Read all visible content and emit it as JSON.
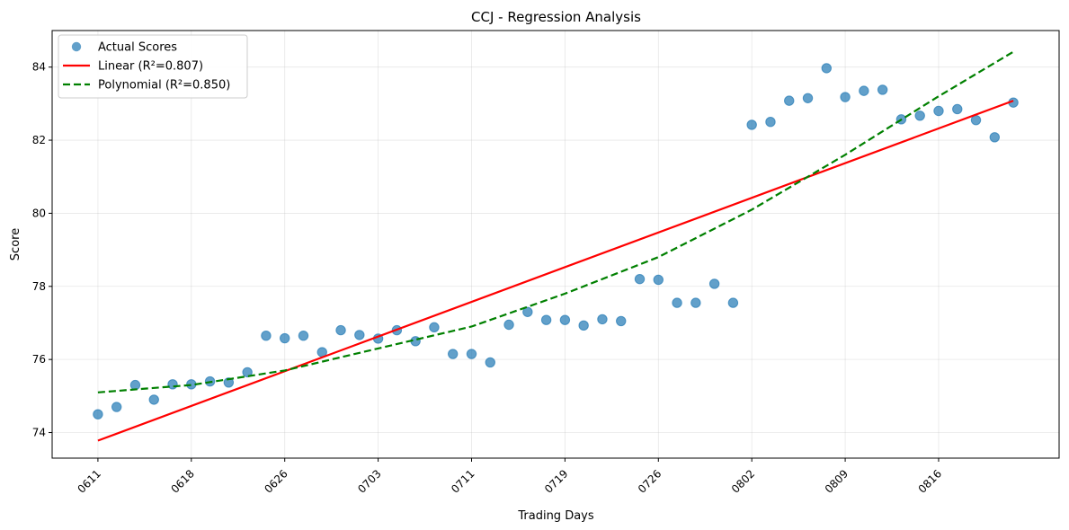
{
  "chart_data": {
    "type": "scatter",
    "title": "CCJ - Regression Analysis",
    "xlabel": "Trading Days",
    "ylabel": "Score",
    "x_tick_labels": [
      "0611",
      "0618",
      "0626",
      "0703",
      "0711",
      "0719",
      "0726",
      "0802",
      "0809",
      "0816"
    ],
    "x_tick_positions": [
      0,
      5,
      10,
      15,
      20,
      25,
      30,
      35,
      40,
      45
    ],
    "xlim": [
      -2.45,
      51.45
    ],
    "ylim": [
      73.3,
      85.0
    ],
    "y_ticks": [
      74,
      76,
      78,
      80,
      82,
      84
    ],
    "grid": true,
    "legend_position": "top-left",
    "series": [
      {
        "name": "Actual Scores",
        "kind": "scatter",
        "color": "#1f77b4",
        "x": [
          0,
          1,
          2,
          3,
          4,
          5,
          6,
          7,
          8,
          9,
          10,
          11,
          12,
          13,
          14,
          15,
          16,
          17,
          18,
          19,
          20,
          21,
          22,
          23,
          24,
          25,
          26,
          27,
          28,
          29,
          30,
          31,
          32,
          33,
          34,
          35,
          36,
          37,
          38,
          39,
          40,
          41,
          42,
          43,
          44,
          45,
          46,
          47,
          48,
          49
        ],
        "y": [
          74.5,
          74.7,
          75.3,
          74.9,
          75.32,
          75.32,
          75.4,
          75.37,
          75.65,
          76.65,
          76.58,
          76.65,
          76.2,
          76.8,
          76.67,
          76.57,
          76.8,
          76.5,
          76.88,
          76.15,
          76.15,
          75.92,
          76.95,
          77.3,
          77.08,
          77.08,
          76.93,
          77.1,
          77.05,
          78.2,
          78.18,
          77.55,
          77.55,
          78.07,
          77.55,
          82.42,
          82.5,
          83.08,
          83.15,
          83.97,
          83.18,
          83.35,
          83.38,
          82.57,
          82.67,
          82.8,
          82.85,
          82.55,
          82.08,
          83.03
        ]
      },
      {
        "name": "Linear (R²=0.807)",
        "kind": "line",
        "color": "#ff0000",
        "dash": "solid",
        "x": [
          0,
          49
        ],
        "y": [
          73.78,
          83.08
        ]
      },
      {
        "name": "Polynomial (R²=0.850)",
        "kind": "line",
        "color": "#008000",
        "dash": "dashed",
        "x": [
          0,
          5,
          10,
          15,
          20,
          25,
          30,
          35,
          40,
          45,
          49
        ],
        "y": [
          75.1,
          75.3,
          75.7,
          76.3,
          76.9,
          77.8,
          78.8,
          80.1,
          81.6,
          83.2,
          84.42
        ]
      }
    ]
  }
}
